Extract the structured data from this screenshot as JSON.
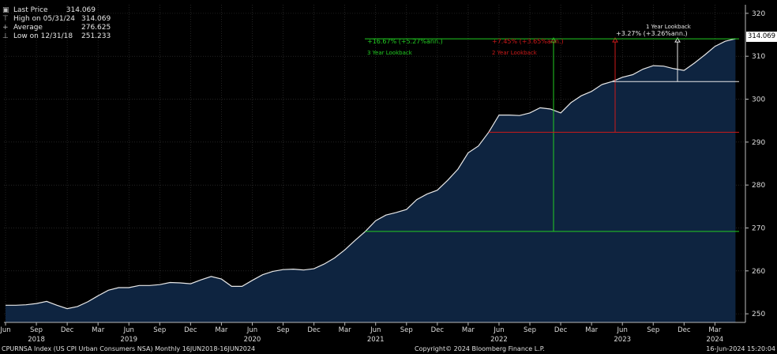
{
  "legend": {
    "title": "Last Price",
    "title_value": "314.069",
    "rows": [
      {
        "label": "High on 05/31/24",
        "value": "314.069"
      },
      {
        "label": "Average",
        "value": "276.625"
      },
      {
        "label": "Low on 12/31/18",
        "value": "251.233"
      }
    ]
  },
  "last_price_box": "314.069",
  "annotations": {
    "three_year_pct": "+16.67% (+5.27%ann.)",
    "three_year_label": "3 Year Lookback",
    "two_year_pct": "+7.45% (+3.65%ann.)",
    "two_year_label": "2 Year Lookback",
    "one_year_pct": "+3.27% (+3.26%ann.)",
    "one_year_label": "1 Year Lookback"
  },
  "footer": {
    "left": "CPURNSA Index (US CPI Urban Consumers NSA)  Monthly 16JUN2018-16JUN2024",
    "center": "Copyright© 2024 Bloomberg Finance L.P.",
    "right": "16-Jun-2024 15:20:04"
  },
  "colors": {
    "background": "#000000",
    "area_fill": "#0e2440",
    "line": "#e8e8e8",
    "three_year": "#22cc22",
    "two_year": "#cc1a1a",
    "one_year": "#e8e8e8",
    "grid": "#3a3a3a"
  },
  "chart_data": {
    "type": "area",
    "title": "",
    "xlabel": "",
    "ylabel": "",
    "ylim": [
      248,
      322
    ],
    "y_ticks": [
      250,
      260,
      270,
      280,
      290,
      300,
      310,
      320
    ],
    "grid": true,
    "legend_position": "top-left",
    "x_tick_labels": [
      "Jun",
      "Sep",
      "Dec",
      "Mar",
      "Jun",
      "Sep",
      "Dec",
      "Mar",
      "Jun",
      "Sep",
      "Dec",
      "Mar",
      "Jun",
      "Sep",
      "Dec",
      "Mar",
      "Jun",
      "Sep",
      "Dec",
      "Mar",
      "Jun",
      "Sep",
      "Dec",
      "Mar"
    ],
    "x_year_labels": [
      {
        "label": "2018",
        "month": "2018-09"
      },
      {
        "label": "2019",
        "month": "2019-06"
      },
      {
        "label": "2020",
        "month": "2020-06"
      },
      {
        "label": "2021",
        "month": "2021-06"
      },
      {
        "label": "2022",
        "month": "2022-06"
      },
      {
        "label": "2023",
        "month": "2023-06"
      },
      {
        "label": "2024",
        "month": "2024-03"
      }
    ],
    "series": [
      {
        "name": "Last Price",
        "x": [
          "2018-06",
          "2018-07",
          "2018-08",
          "2018-09",
          "2018-10",
          "2018-11",
          "2018-12",
          "2019-01",
          "2019-02",
          "2019-03",
          "2019-04",
          "2019-05",
          "2019-06",
          "2019-07",
          "2019-08",
          "2019-09",
          "2019-10",
          "2019-11",
          "2019-12",
          "2020-01",
          "2020-02",
          "2020-03",
          "2020-04",
          "2020-05",
          "2020-06",
          "2020-07",
          "2020-08",
          "2020-09",
          "2020-10",
          "2020-11",
          "2020-12",
          "2021-01",
          "2021-02",
          "2021-03",
          "2021-04",
          "2021-05",
          "2021-06",
          "2021-07",
          "2021-08",
          "2021-09",
          "2021-10",
          "2021-11",
          "2021-12",
          "2022-01",
          "2022-02",
          "2022-03",
          "2022-04",
          "2022-05",
          "2022-06",
          "2022-07",
          "2022-08",
          "2022-09",
          "2022-10",
          "2022-11",
          "2022-12",
          "2023-01",
          "2023-02",
          "2023-03",
          "2023-04",
          "2023-05",
          "2023-06",
          "2023-07",
          "2023-08",
          "2023-09",
          "2023-10",
          "2023-11",
          "2023-12",
          "2024-01",
          "2024-02",
          "2024-03",
          "2024-04",
          "2024-05"
        ],
        "values": [
          252.0,
          252.0,
          252.1,
          252.4,
          252.9,
          252.0,
          251.2,
          251.7,
          252.8,
          254.2,
          255.5,
          256.1,
          256.1,
          256.6,
          256.6,
          256.8,
          257.3,
          257.2,
          257.0,
          257.9,
          258.7,
          258.1,
          256.4,
          256.4,
          257.8,
          259.1,
          259.9,
          260.3,
          260.4,
          260.2,
          260.5,
          261.6,
          263.0,
          264.9,
          267.1,
          269.2,
          271.7,
          273.0,
          273.6,
          274.3,
          276.6,
          277.9,
          278.8,
          281.1,
          283.7,
          287.5,
          289.1,
          292.3,
          296.3,
          296.3,
          296.2,
          296.8,
          298.0,
          297.7,
          296.8,
          299.2,
          300.8,
          301.8,
          303.4,
          304.1,
          305.1,
          305.7,
          307.0,
          307.8,
          307.7,
          307.1,
          306.7,
          308.4,
          310.3,
          312.3,
          313.5,
          314.069
        ]
      }
    ],
    "lookbacks": [
      {
        "label": "3 Year Lookback",
        "from": "2021-05",
        "from_value": 269.2,
        "to_value": 314.069,
        "change": "+16.67% (+5.27%ann.)"
      },
      {
        "label": "2 Year Lookback",
        "from": "2022-05",
        "from_value": 292.3,
        "to_value": 314.069,
        "change": "+7.45% (+3.65%ann.)"
      },
      {
        "label": "1 Year Lookback",
        "from": "2023-05",
        "from_value": 304.1,
        "to_value": 314.069,
        "change": "+3.27% (+3.26%ann.)"
      }
    ]
  }
}
